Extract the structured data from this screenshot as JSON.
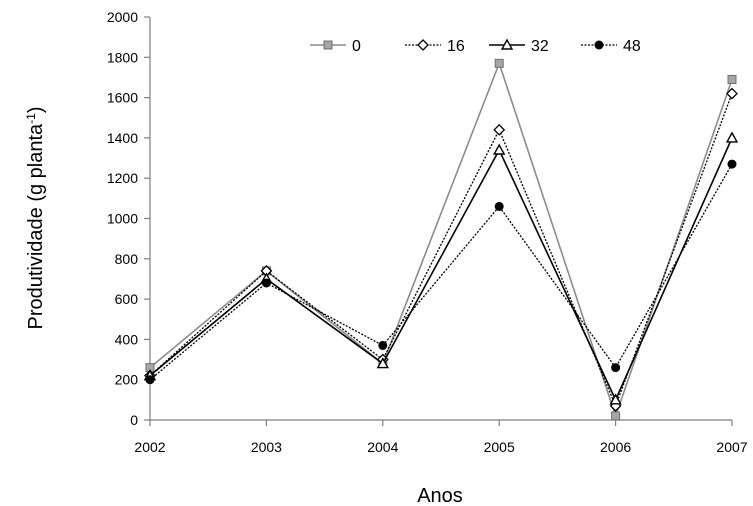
{
  "chart_data": {
    "type": "line",
    "title": "",
    "xlabel": "Anos",
    "ylabel_main": "Produtividade (g planta",
    "ylabel_sup": "-1",
    "ylabel_end": ")",
    "x": [
      "2002",
      "2003",
      "2004",
      "2005",
      "2006",
      "2007"
    ],
    "ylim": [
      0,
      2000
    ],
    "yticks": [
      "0",
      "200",
      "400",
      "600",
      "800",
      "1000",
      "1200",
      "1400",
      "1600",
      "1800",
      "2000"
    ],
    "grid": false,
    "legend_position": "top-center",
    "series": [
      {
        "name": "0",
        "values": [
          260,
          740,
          280,
          1770,
          20,
          1690
        ],
        "marker": "square",
        "line": "solid",
        "color": "#8c8c8c"
      },
      {
        "name": "16",
        "values": [
          220,
          740,
          300,
          1440,
          70,
          1620
        ],
        "marker": "diamond",
        "line": "dotted",
        "color": "#000000"
      },
      {
        "name": "32",
        "values": [
          220,
          700,
          280,
          1340,
          100,
          1400
        ],
        "marker": "triangle",
        "line": "solid",
        "color": "#000000"
      },
      {
        "name": "48",
        "values": [
          200,
          680,
          370,
          1060,
          260,
          1270
        ],
        "marker": "circle",
        "line": "dotted",
        "color": "#000000"
      }
    ]
  }
}
